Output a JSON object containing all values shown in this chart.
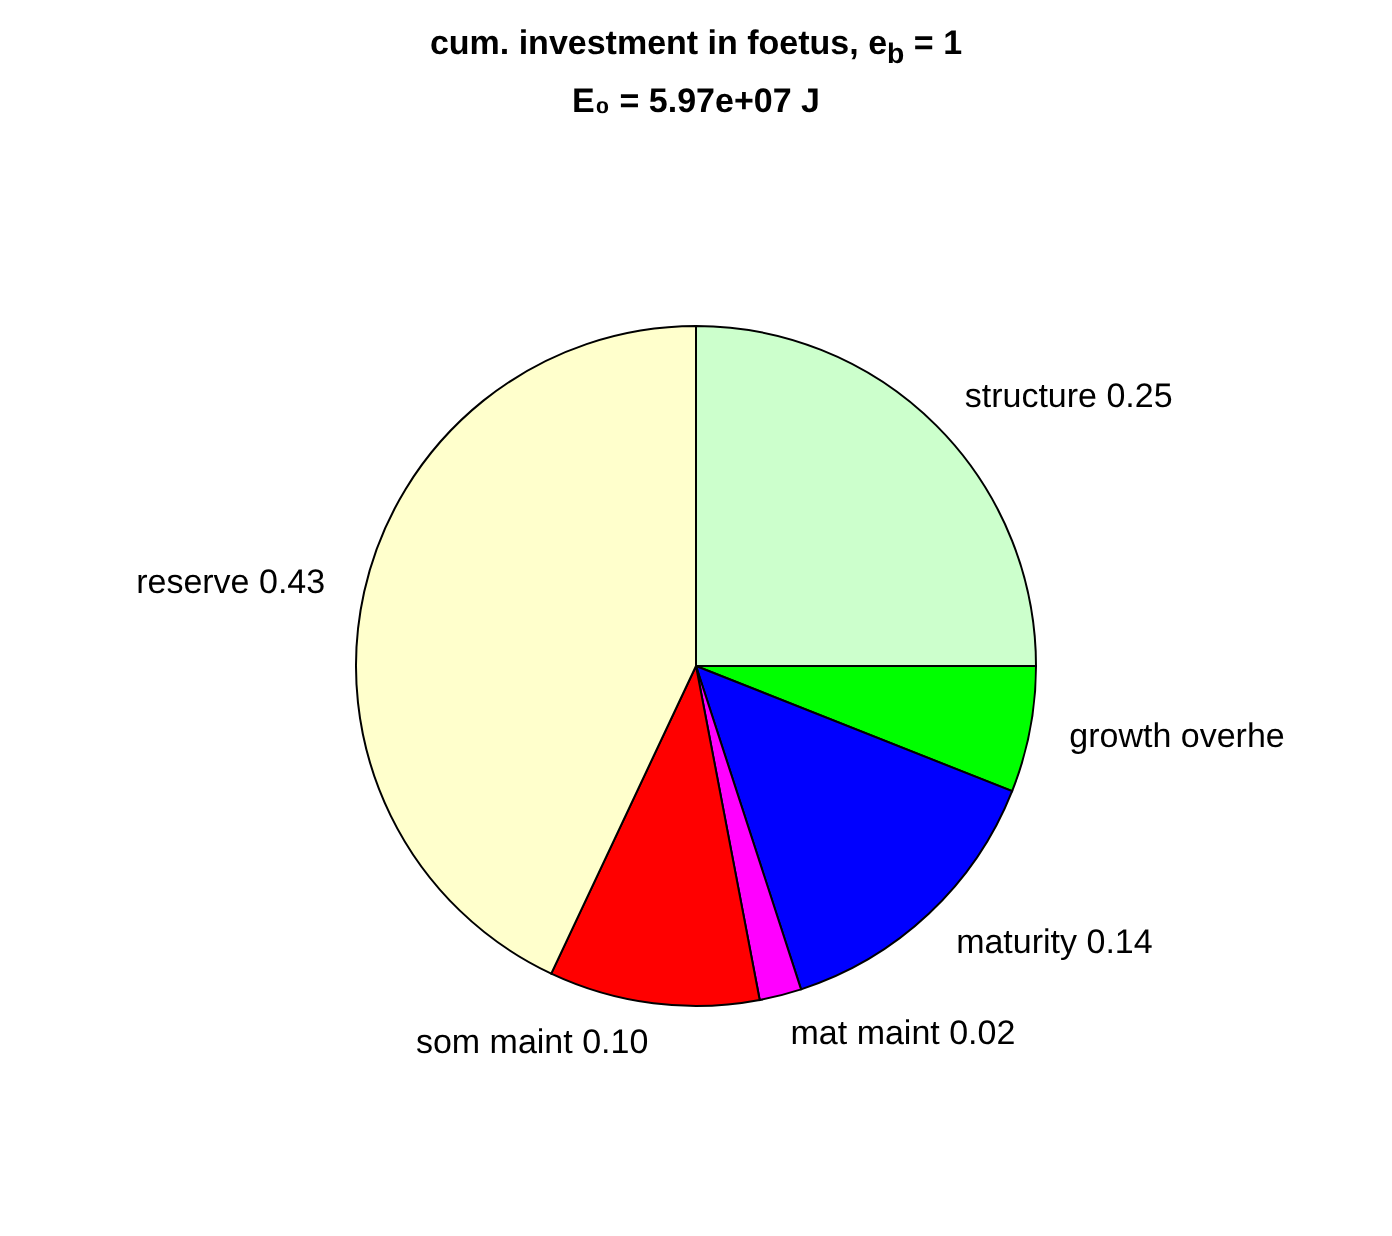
{
  "chart_data": {
    "type": "pie",
    "title": "cum. investment in foetus, e$_{b}$ = 1",
    "subtitle": "E₀ = 5.97e+07 J",
    "categories": [
      "structure",
      "growth overhe",
      "maturity",
      "mat maint",
      "som maint",
      "reserve"
    ],
    "values": [
      0.25,
      0.06,
      0.14,
      0.02,
      0.1,
      0.43
    ],
    "value_labels": [
      "0.25",
      null,
      "0.14",
      "0.02",
      "0.10",
      "0.43"
    ],
    "colors": [
      "#ccffcc",
      "#00ff00",
      "#0000ff",
      "#ff00ff",
      "#ff0000",
      "#ffffcc"
    ]
  }
}
